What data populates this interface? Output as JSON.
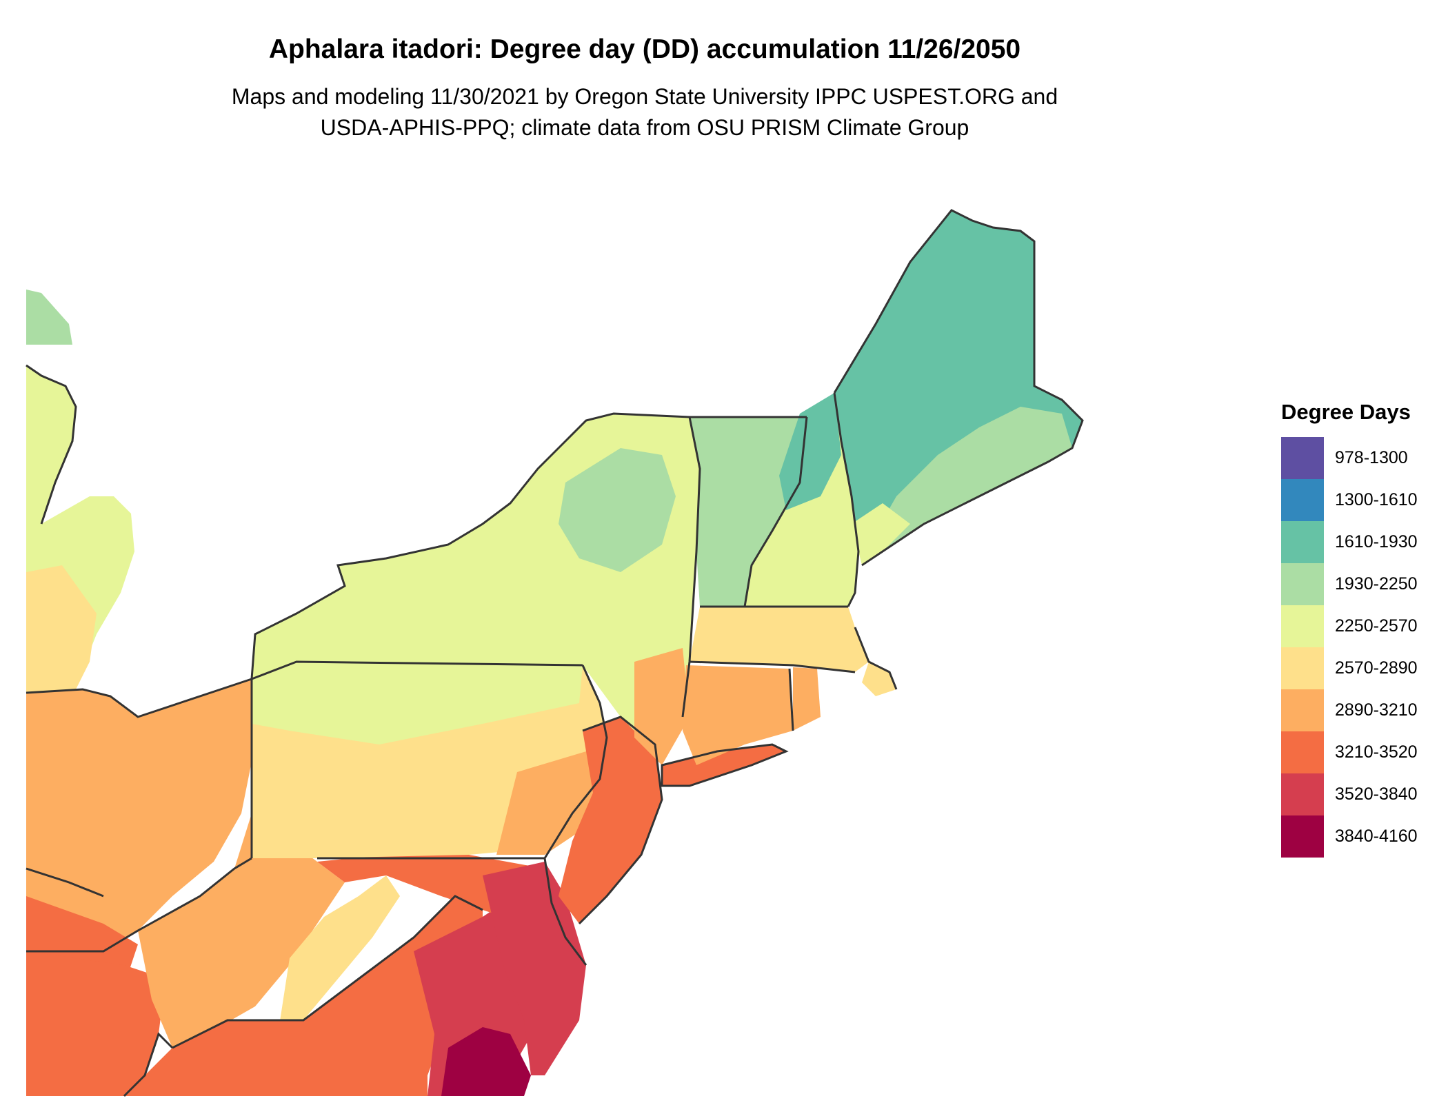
{
  "title": "Aphalara itadori: Degree day (DD) accumulation 11/26/2050",
  "subtitle_line1": "Maps and modeling 11/30/2021 by Oregon State University IPPC USPEST.ORG and",
  "subtitle_line2": "USDA-APHIS-PPQ; climate data from OSU PRISM Climate Group",
  "legend": {
    "title": "Degree Days",
    "items": [
      {
        "label": "978-1300",
        "color": "#5e4fa2"
      },
      {
        "label": "1300-1610",
        "color": "#3288bd"
      },
      {
        "label": "1610-1930",
        "color": "#66c2a5"
      },
      {
        "label": "1930-2250",
        "color": "#abdda4"
      },
      {
        "label": "2250-2570",
        "color": "#e6f598"
      },
      {
        "label": "2570-2890",
        "color": "#fee08b"
      },
      {
        "label": "2890-3210",
        "color": "#fdae61"
      },
      {
        "label": "3210-3520",
        "color": "#f46d43"
      },
      {
        "label": "3520-3840",
        "color": "#d53e4f"
      },
      {
        "label": "3840-4160",
        "color": "#9e0142"
      }
    ]
  }
}
